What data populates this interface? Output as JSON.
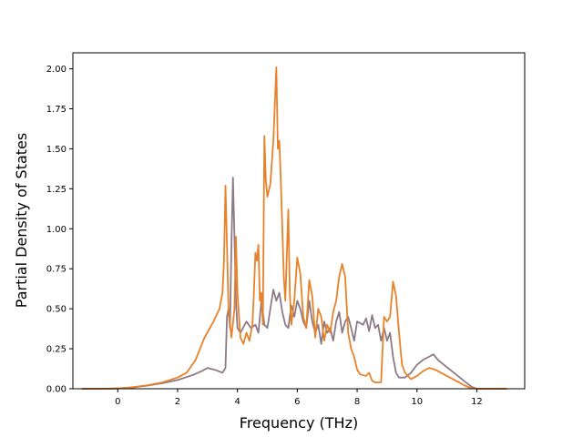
{
  "chart_data": {
    "type": "line",
    "title": "",
    "xlabel": "Frequency (THz)",
    "ylabel": "Partial Density of States",
    "xlim": [
      -1.5,
      13.6
    ],
    "ylim": [
      0,
      2.1
    ],
    "xticks": [
      0,
      2,
      4,
      6,
      8,
      10,
      12
    ],
    "xtick_labels": [
      "0",
      "2",
      "4",
      "6",
      "8",
      "10",
      "12"
    ],
    "yticks": [
      0,
      0.25,
      0.5,
      0.75,
      1.0,
      1.25,
      1.5,
      1.75,
      2.0
    ],
    "ytick_labels": [
      "0.00",
      "0.25",
      "0.50",
      "0.75",
      "1.00",
      "1.25",
      "1.50",
      "1.75",
      "2.00"
    ],
    "grid": false,
    "legend": "none",
    "series": [
      {
        "color": "#8c7b86",
        "points": [
          [
            -1.2,
            0
          ],
          [
            -0.5,
            0
          ],
          [
            0,
            0.002
          ],
          [
            0.5,
            0.008
          ],
          [
            1.0,
            0.02
          ],
          [
            1.5,
            0.035
          ],
          [
            2.0,
            0.055
          ],
          [
            2.5,
            0.085
          ],
          [
            2.8,
            0.11
          ],
          [
            3.0,
            0.13
          ],
          [
            3.3,
            0.115
          ],
          [
            3.5,
            0.1
          ],
          [
            3.6,
            0.13
          ],
          [
            3.65,
            0.45
          ],
          [
            3.7,
            0.5
          ],
          [
            3.75,
            0.38
          ],
          [
            3.8,
            0.9
          ],
          [
            3.85,
            1.32
          ],
          [
            3.9,
            0.95
          ],
          [
            3.95,
            0.55
          ],
          [
            4.0,
            0.38
          ],
          [
            4.1,
            0.35
          ],
          [
            4.3,
            0.42
          ],
          [
            4.45,
            0.38
          ],
          [
            4.6,
            0.4
          ],
          [
            4.7,
            0.35
          ],
          [
            4.8,
            0.55
          ],
          [
            4.9,
            0.4
          ],
          [
            5.0,
            0.38
          ],
          [
            5.1,
            0.5
          ],
          [
            5.2,
            0.62
          ],
          [
            5.3,
            0.55
          ],
          [
            5.4,
            0.6
          ],
          [
            5.5,
            0.48
          ],
          [
            5.6,
            0.4
          ],
          [
            5.7,
            0.38
          ],
          [
            5.8,
            0.52
          ],
          [
            5.9,
            0.45
          ],
          [
            6.0,
            0.55
          ],
          [
            6.1,
            0.5
          ],
          [
            6.2,
            0.42
          ],
          [
            6.3,
            0.38
          ],
          [
            6.4,
            0.55
          ],
          [
            6.5,
            0.42
          ],
          [
            6.6,
            0.35
          ],
          [
            6.7,
            0.4
          ],
          [
            6.8,
            0.28
          ],
          [
            6.9,
            0.42
          ],
          [
            7.0,
            0.35
          ],
          [
            7.1,
            0.38
          ],
          [
            7.2,
            0.3
          ],
          [
            7.3,
            0.42
          ],
          [
            7.4,
            0.48
          ],
          [
            7.5,
            0.35
          ],
          [
            7.6,
            0.42
          ],
          [
            7.7,
            0.45
          ],
          [
            7.8,
            0.38
          ],
          [
            7.9,
            0.3
          ],
          [
            8.0,
            0.42
          ],
          [
            8.2,
            0.4
          ],
          [
            8.3,
            0.44
          ],
          [
            8.4,
            0.36
          ],
          [
            8.5,
            0.46
          ],
          [
            8.6,
            0.38
          ],
          [
            8.7,
            0.4
          ],
          [
            8.8,
            0.3
          ],
          [
            8.9,
            0.38
          ],
          [
            9.0,
            0.3
          ],
          [
            9.1,
            0.35
          ],
          [
            9.2,
            0.2
          ],
          [
            9.3,
            0.1
          ],
          [
            9.4,
            0.07
          ],
          [
            9.6,
            0.07
          ],
          [
            9.8,
            0.1
          ],
          [
            10.0,
            0.15
          ],
          [
            10.2,
            0.18
          ],
          [
            10.4,
            0.2
          ],
          [
            10.55,
            0.215
          ],
          [
            10.7,
            0.18
          ],
          [
            10.9,
            0.15
          ],
          [
            11.1,
            0.12
          ],
          [
            11.3,
            0.09
          ],
          [
            11.5,
            0.06
          ],
          [
            11.7,
            0.03
          ],
          [
            11.85,
            0.01
          ],
          [
            12.0,
            0
          ],
          [
            13.0,
            0
          ]
        ]
      },
      {
        "color": "#e8822a",
        "points": [
          [
            -1.2,
            0
          ],
          [
            -0.5,
            0
          ],
          [
            0,
            0.002
          ],
          [
            0.5,
            0.01
          ],
          [
            1.0,
            0.022
          ],
          [
            1.5,
            0.04
          ],
          [
            2.0,
            0.07
          ],
          [
            2.3,
            0.1
          ],
          [
            2.6,
            0.18
          ],
          [
            2.9,
            0.32
          ],
          [
            3.2,
            0.42
          ],
          [
            3.4,
            0.5
          ],
          [
            3.5,
            0.6
          ],
          [
            3.55,
            0.8
          ],
          [
            3.6,
            1.27
          ],
          [
            3.65,
            0.9
          ],
          [
            3.7,
            0.5
          ],
          [
            3.8,
            0.32
          ],
          [
            3.9,
            0.5
          ],
          [
            3.95,
            0.95
          ],
          [
            4.0,
            0.6
          ],
          [
            4.1,
            0.32
          ],
          [
            4.2,
            0.28
          ],
          [
            4.3,
            0.35
          ],
          [
            4.4,
            0.3
          ],
          [
            4.5,
            0.4
          ],
          [
            4.55,
            0.6
          ],
          [
            4.6,
            0.85
          ],
          [
            4.65,
            0.8
          ],
          [
            4.7,
            0.9
          ],
          [
            4.75,
            0.55
          ],
          [
            4.8,
            0.6
          ],
          [
            4.85,
            0.4
          ],
          [
            4.9,
            1.58
          ],
          [
            4.95,
            1.3
          ],
          [
            5.0,
            1.2
          ],
          [
            5.1,
            1.28
          ],
          [
            5.2,
            1.55
          ],
          [
            5.3,
            2.01
          ],
          [
            5.35,
            1.5
          ],
          [
            5.4,
            1.55
          ],
          [
            5.45,
            1.3
          ],
          [
            5.5,
            1.0
          ],
          [
            5.55,
            0.7
          ],
          [
            5.6,
            0.55
          ],
          [
            5.7,
            1.12
          ],
          [
            5.75,
            0.6
          ],
          [
            5.8,
            0.4
          ],
          [
            5.9,
            0.55
          ],
          [
            6.0,
            0.82
          ],
          [
            6.1,
            0.72
          ],
          [
            6.2,
            0.45
          ],
          [
            6.3,
            0.38
          ],
          [
            6.4,
            0.68
          ],
          [
            6.5,
            0.58
          ],
          [
            6.6,
            0.32
          ],
          [
            6.7,
            0.5
          ],
          [
            6.8,
            0.45
          ],
          [
            6.9,
            0.3
          ],
          [
            7.0,
            0.4
          ],
          [
            7.1,
            0.35
          ],
          [
            7.2,
            0.48
          ],
          [
            7.3,
            0.55
          ],
          [
            7.4,
            0.7
          ],
          [
            7.5,
            0.78
          ],
          [
            7.6,
            0.7
          ],
          [
            7.7,
            0.35
          ],
          [
            7.8,
            0.25
          ],
          [
            7.9,
            0.2
          ],
          [
            8.0,
            0.12
          ],
          [
            8.1,
            0.09
          ],
          [
            8.3,
            0.08
          ],
          [
            8.4,
            0.1
          ],
          [
            8.5,
            0.05
          ],
          [
            8.6,
            0.04
          ],
          [
            8.7,
            0.04
          ],
          [
            8.8,
            0.04
          ],
          [
            8.9,
            0.45
          ],
          [
            9.0,
            0.42
          ],
          [
            9.1,
            0.45
          ],
          [
            9.2,
            0.67
          ],
          [
            9.3,
            0.58
          ],
          [
            9.4,
            0.35
          ],
          [
            9.5,
            0.15
          ],
          [
            9.6,
            0.1
          ],
          [
            9.8,
            0.06
          ],
          [
            10.0,
            0.08
          ],
          [
            10.2,
            0.11
          ],
          [
            10.4,
            0.13
          ],
          [
            10.6,
            0.12
          ],
          [
            10.8,
            0.1
          ],
          [
            11.0,
            0.08
          ],
          [
            11.2,
            0.06
          ],
          [
            11.4,
            0.04
          ],
          [
            11.6,
            0.02
          ],
          [
            11.8,
            0.005
          ],
          [
            12.0,
            0
          ],
          [
            13.0,
            0
          ]
        ]
      }
    ]
  }
}
